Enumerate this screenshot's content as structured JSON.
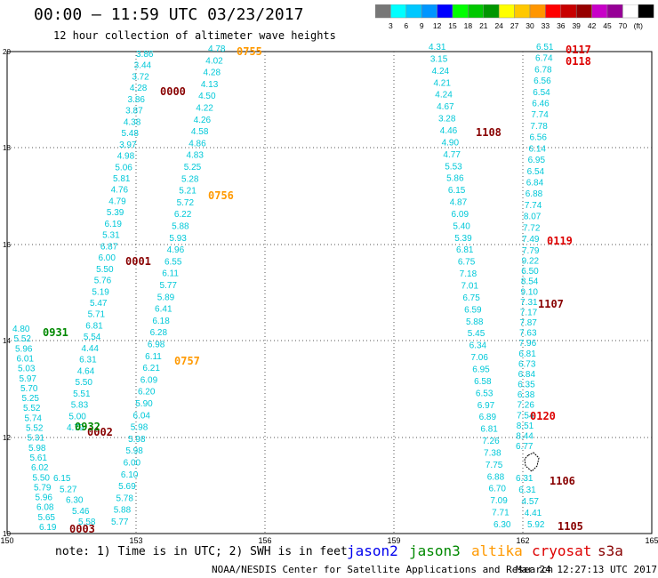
{
  "header": {
    "title": "00:00 — 11:59 UTC 03/23/2017",
    "subtitle": "12 hour collection of altimeter wave heights"
  },
  "colorbar": {
    "colors": [
      "#777777",
      "#00ffff",
      "#00c8ff",
      "#0096ff",
      "#0000ff",
      "#00ff00",
      "#00c800",
      "#009600",
      "#ffff00",
      "#ffc800",
      "#ff9600",
      "#ff0000",
      "#c80000",
      "#960000",
      "#c800c8",
      "#960096",
      "#ffffff",
      "#000000"
    ],
    "labels": [
      "3",
      "6",
      "9",
      "12",
      "15",
      "18",
      "21",
      "24",
      "27",
      "30",
      "33",
      "36",
      "39",
      "42",
      "45",
      "70",
      "(ft)"
    ]
  },
  "axes": {
    "x_ticks": [
      "150",
      "153",
      "156",
      "159",
      "162",
      "165"
    ],
    "y_ticks": [
      "10",
      "12",
      "14",
      "16",
      "18",
      "20"
    ]
  },
  "footer": {
    "note": "note: 1) Time is in UTC; 2) SWH is in feet",
    "satellites": [
      {
        "name": "jason2",
        "color": "#0000ee"
      },
      {
        "name": "jason3",
        "color": "#008800"
      },
      {
        "name": "altika",
        "color": "#ff9900"
      },
      {
        "name": "cryosat",
        "color": "#dd0000"
      },
      {
        "name": "s3a",
        "color": "#880000"
      }
    ],
    "credit": "NOAA/NESDIS Center for Satellite Applications and Research",
    "timestamp": "Mar 24 12:27:13 UTC 2017"
  },
  "tracks": [
    {
      "sat": "cryosat",
      "time": "0117",
      "color": "#dd0000",
      "values": [
        "6.51",
        "6.74",
        "6.78",
        "6.56",
        "6.54",
        "6.46",
        "7.74",
        "7.78",
        "6.56",
        "6.14",
        "6.95",
        "6.54",
        "6.84",
        "6.88",
        "7.74",
        "8.07",
        "7.72",
        "7.49"
      ]
    },
    {
      "sat": "cryosat",
      "time": "0118",
      "color": "#dd0000",
      "values": []
    },
    {
      "sat": "cryosat",
      "time": "0119",
      "color": "#dd0000",
      "values": [
        "7.79",
        "9.22",
        "6.50",
        "8.54",
        "9.10",
        "7.31",
        "7.17",
        "7.87",
        "7.63",
        "7.96",
        "6.81",
        "6.73",
        "6.84",
        "6.35",
        "6.38",
        "7.26",
        "7.54",
        "8.51",
        "8.44",
        "6.77"
      ]
    },
    {
      "sat": "cryosat",
      "time": "0120",
      "color": "#dd0000",
      "values": []
    },
    {
      "sat": "s3a",
      "time": "1108",
      "color": "#880000",
      "values": [
        "4.31",
        "3.15",
        "4.24",
        "4.21",
        "4.24",
        "4.67",
        "3.28",
        "4.46",
        "4.90",
        "4.77",
        "5.53",
        "5.86",
        "6.15",
        "4.87",
        "6.09",
        "5.40",
        "5.39",
        "6.81",
        "6.75",
        "7.18",
        "7.01",
        "6.75",
        "6.59",
        "5.88",
        "5.45",
        "6.34",
        "7.06",
        "6.95",
        "6.58",
        "6.53",
        "6.97",
        "6.89",
        "6.81",
        "7.26",
        "7.38",
        "7.75",
        "6.88",
        "6.70",
        "7.09",
        "7.71",
        "6.30"
      ]
    },
    {
      "sat": "s3a",
      "time": "1107",
      "color": "#880000",
      "values": []
    },
    {
      "sat": "s3a",
      "time": "1106",
      "color": "#880000",
      "values": [
        "6.31",
        "6.31",
        "4.57",
        "4.41",
        "5.92"
      ]
    },
    {
      "sat": "s3a",
      "time": "1105",
      "color": "#880000",
      "values": []
    },
    {
      "sat": "s3a",
      "time": "0000",
      "color": "#880000",
      "values": [
        "3.86",
        "3.44",
        "3.72",
        "4.28",
        "3.86",
        "3.87",
        "4.38",
        "5.48",
        "3.97",
        "4.98",
        "5.06",
        "5.81",
        "4.76",
        "4.79",
        "5.39",
        "6.19",
        "5.31",
        "6.87",
        "6.00",
        "5.50",
        "5.76",
        "5.19",
        "5.47",
        "5.71",
        "6.81",
        "5.54",
        "4.44",
        "6.31",
        "4.64",
        "5.50",
        "5.51",
        "5.83",
        "5.00",
        "4.79"
      ]
    },
    {
      "sat": "s3a",
      "time": "0001",
      "color": "#880000",
      "values": []
    },
    {
      "sat": "s3a",
      "time": "0002",
      "color": "#880000",
      "values": []
    },
    {
      "sat": "s3a",
      "time": "0003",
      "color": "#880000",
      "values": []
    },
    {
      "sat": "altika",
      "time": "0755",
      "color": "#ff9900",
      "values": [
        "4.78",
        "4.02",
        "4.28",
        "4.13",
        "4.50",
        "4.22",
        "4.26",
        "4.58",
        "4.86",
        "4.83",
        "5.25",
        "5.28",
        "5.21",
        "5.72",
        "6.22",
        "5.88",
        "5.93",
        "4.96",
        "6.55",
        "6.11",
        "5.77",
        "5.89",
        "6.41",
        "6.18",
        "6.28",
        "6.98",
        "6.11",
        "6.21",
        "6.09",
        "6.20",
        "5.90",
        "6.04",
        "5.98",
        "5.98",
        "5.98",
        "6.00",
        "6.10",
        "5.69",
        "5.78",
        "5.88",
        "5.77"
      ]
    },
    {
      "sat": "altika",
      "time": "0756",
      "color": "#ff9900",
      "values": []
    },
    {
      "sat": "altika",
      "time": "0757",
      "color": "#ff9900",
      "values": []
    },
    {
      "sat": "jason3",
      "time": "0931",
      "color": "#008800",
      "values": [
        "4.80",
        "5.52",
        "5.96",
        "6.01",
        "5.03",
        "5.97",
        "5.70",
        "5.25",
        "5.52",
        "5.74",
        "5.52",
        "5.31",
        "5.98",
        "5.61",
        "6.02",
        "5.50",
        "5.79",
        "5.96",
        "6.08",
        "5.65",
        "6.19"
      ]
    },
    {
      "sat": "jason3",
      "time": "0932",
      "color": "#008800",
      "values": [
        "6.15",
        "5.27",
        "6.30",
        "5.46",
        "5.58"
      ]
    }
  ]
}
